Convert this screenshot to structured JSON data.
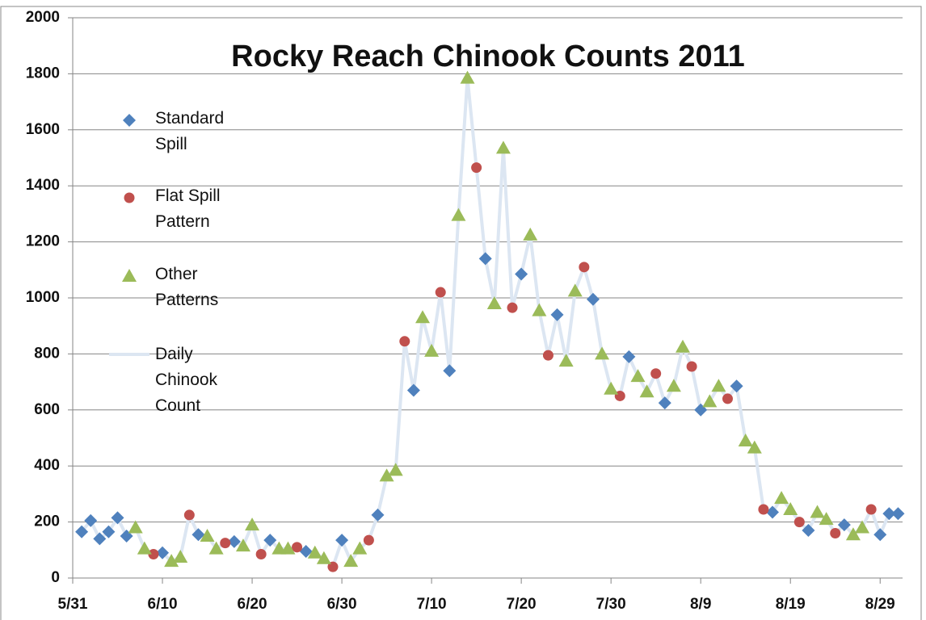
{
  "chart_data": {
    "type": "line",
    "title": "Rocky Reach Chinook Counts 2011",
    "xlim": [
      0,
      92.5
    ],
    "xticks": [
      {
        "value": 0,
        "label": "5/31"
      },
      {
        "value": 10,
        "label": "6/10"
      },
      {
        "value": 20,
        "label": "6/20"
      },
      {
        "value": 30,
        "label": "6/30"
      },
      {
        "value": 40,
        "label": "7/10"
      },
      {
        "value": 50,
        "label": "7/20"
      },
      {
        "value": 60,
        "label": "7/30"
      },
      {
        "value": 70,
        "label": "8/9"
      },
      {
        "value": 80,
        "label": "8/19"
      },
      {
        "value": 90,
        "label": "8/29"
      }
    ],
    "ylim": [
      0,
      2000
    ],
    "yticks": [
      0,
      200,
      400,
      600,
      800,
      1000,
      1200,
      1400,
      1600,
      1800,
      2000
    ],
    "grid": true,
    "legend": "left",
    "series": [
      {
        "name": "Standard Spill",
        "type": "scatter",
        "marker": "diamond",
        "color": "#4f81bd",
        "x": [
          1,
          2,
          3,
          4,
          5,
          6,
          10,
          14,
          18,
          22,
          26,
          30,
          34,
          38,
          42,
          46,
          50,
          54,
          58,
          62,
          66,
          70,
          74,
          78,
          82,
          86,
          90,
          91,
          92
        ],
        "values": [
          165,
          205,
          140,
          165,
          215,
          150,
          90,
          155,
          130,
          135,
          95,
          135,
          225,
          670,
          740,
          1140,
          1085,
          940,
          995,
          790,
          625,
          600,
          685,
          235,
          170,
          190,
          155,
          230,
          230
        ]
      },
      {
        "name": "Flat Spill Pattern",
        "type": "scatter",
        "marker": "circle",
        "color": "#c0504d",
        "x": [
          9,
          13,
          17,
          21,
          25,
          29,
          33,
          37,
          41,
          45,
          49,
          53,
          57,
          61,
          65,
          69,
          73,
          77,
          81,
          85,
          89
        ],
        "values": [
          85,
          225,
          125,
          85,
          110,
          40,
          135,
          845,
          1020,
          1465,
          965,
          795,
          1110,
          650,
          730,
          755,
          640,
          245,
          200,
          160,
          245
        ]
      },
      {
        "name": "Other Patterns",
        "type": "scatter",
        "marker": "triangle",
        "color": "#9bbb59",
        "x": [
          7,
          8,
          11,
          12,
          15,
          16,
          19,
          20,
          23,
          24,
          27,
          28,
          31,
          32,
          35,
          36,
          39,
          40,
          43,
          44,
          47,
          48,
          51,
          52,
          55,
          56,
          59,
          60,
          63,
          64,
          67,
          68,
          71,
          72,
          75,
          76,
          79,
          80,
          83,
          84,
          87,
          88
        ],
        "values": [
          180,
          105,
          60,
          75,
          150,
          105,
          115,
          190,
          105,
          105,
          90,
          70,
          60,
          105,
          365,
          385,
          930,
          810,
          1295,
          1785,
          980,
          1535,
          1225,
          955,
          775,
          1025,
          800,
          675,
          720,
          665,
          685,
          825,
          630,
          685,
          490,
          465,
          285,
          245,
          235,
          210,
          155,
          180
        ]
      },
      {
        "name": "Daily Chinook Count",
        "type": "line",
        "color": "#dce6f2",
        "x": [
          1,
          2,
          3,
          4,
          5,
          6,
          7,
          8,
          9,
          10,
          11,
          12,
          13,
          14,
          15,
          16,
          17,
          18,
          19,
          20,
          21,
          22,
          23,
          24,
          25,
          26,
          27,
          28,
          29,
          30,
          31,
          32,
          33,
          34,
          35,
          36,
          37,
          38,
          39,
          40,
          41,
          42,
          43,
          44,
          45,
          46,
          47,
          48,
          49,
          50,
          51,
          52,
          53,
          54,
          55,
          56,
          57,
          58,
          59,
          60,
          61,
          62,
          63,
          64,
          65,
          66,
          67,
          68,
          69,
          70,
          71,
          72,
          73,
          74,
          75,
          76,
          77,
          78,
          79,
          80,
          81,
          82,
          83,
          84,
          85,
          86,
          87,
          88,
          89,
          90,
          91,
          92
        ],
        "values": [
          165,
          205,
          140,
          165,
          215,
          150,
          180,
          105,
          85,
          90,
          60,
          75,
          225,
          155,
          150,
          105,
          125,
          130,
          115,
          190,
          85,
          135,
          105,
          105,
          110,
          95,
          90,
          70,
          40,
          135,
          60,
          105,
          135,
          225,
          365,
          385,
          845,
          670,
          930,
          810,
          1020,
          740,
          1295,
          1785,
          1465,
          1140,
          980,
          1535,
          965,
          1085,
          1225,
          955,
          795,
          940,
          775,
          1025,
          1110,
          995,
          800,
          675,
          650,
          790,
          720,
          665,
          730,
          625,
          685,
          825,
          755,
          600,
          630,
          685,
          640,
          685,
          490,
          465,
          245,
          235,
          285,
          245,
          200,
          170,
          235,
          210,
          160,
          190,
          155,
          180,
          245,
          155,
          230,
          230
        ]
      }
    ]
  }
}
